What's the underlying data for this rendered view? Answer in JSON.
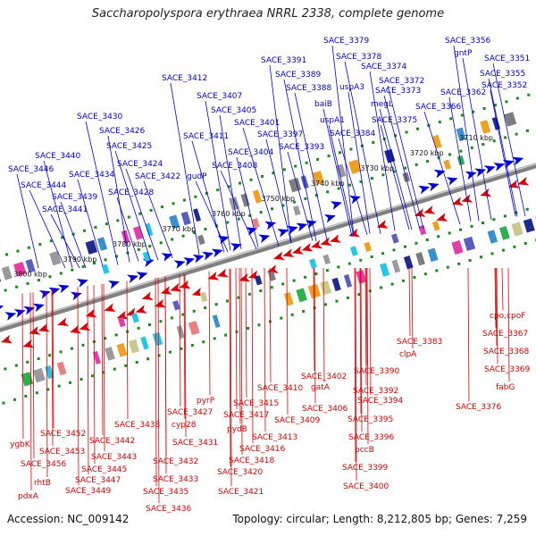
{
  "title": "Saccharopolyspora erythraea NRRL 2338, complete genome",
  "accession": "Accession: NC_009142",
  "topology": "Topology: circular; Length: 8,212,805 bp; Genes: 7,259",
  "colors": {
    "forward": "#0000dd",
    "reverse": "#dd0000",
    "backbone": "#808080",
    "tick": "#1a8a1a"
  },
  "kbp_ticks": [
    "3710 kbp",
    "3720 kbp",
    "3730 kbp",
    "3740 kbp",
    "3750 kbp",
    "3760 kbp",
    "3770 kbp",
    "3780 kbp",
    "3790 kbp",
    "3800 kbp"
  ],
  "top_labels": [
    "SACE_3379",
    "SACE_3356",
    "gntP",
    "SACE_3351",
    "SACE_3378",
    "SACE_3391",
    "SACE_3374",
    "SACE_3355",
    "SACE_3389",
    "SACE_3372",
    "uspA3",
    "SACE_3352",
    "SACE_3412",
    "SACE_3388",
    "SACE_3373",
    "SACE_3362",
    "SACE_3407",
    "baiB",
    "megL",
    "SACE_3366",
    "SACE_3405",
    "uspA1",
    "SACE_3375",
    "SACE_3430",
    "SACE_3401",
    "SACE_3426",
    "SACE_3397",
    "SACE_3384",
    "SACE_3411",
    "SACE_3425",
    "SACE_3404",
    "SACE_3393",
    "SACE_3440",
    "SACE_3424",
    "SACE_3408",
    "SACE_3446",
    "SACE_3434",
    "SACE_3422",
    "gudP",
    "SACE_3444",
    "SACE_3428",
    "SACE_3439",
    "SACE_3441"
  ],
  "bottom_labels": [
    "cpo,cpoF",
    "SACE_3367",
    "SACE_3383",
    "SACE_3368",
    "clpA",
    "SACE_3369",
    "SACE_3402",
    "SACE_3390",
    "fabG",
    "gatA",
    "SACE_3410",
    "SACE_3392",
    "SACE_3376",
    "SACE_3406",
    "SACE_3394",
    "pyrP",
    "SACE_3415",
    "SACE_3427",
    "SACE_3417",
    "SACE_3409",
    "SACE_3438",
    "cyp28",
    "pydB",
    "SACE_3395",
    "SACE_3413",
    "SACE_3452",
    "SACE_3442",
    "SACE_3431",
    "SACE_3416",
    "SACE_3396",
    "ygbK",
    "SACE_3453",
    "SACE_3443",
    "SACE_3418",
    "pccB",
    "SACE_3456",
    "SACE_3445",
    "SACE_3432",
    "SACE_3420",
    "SACE_3399",
    "rhtB",
    "SACE_3447",
    "SACE_3433",
    "SACE_3400",
    "SACE_3449",
    "SACE_3435",
    "SACE_3421",
    "pdxA",
    "SACE_3436"
  ]
}
